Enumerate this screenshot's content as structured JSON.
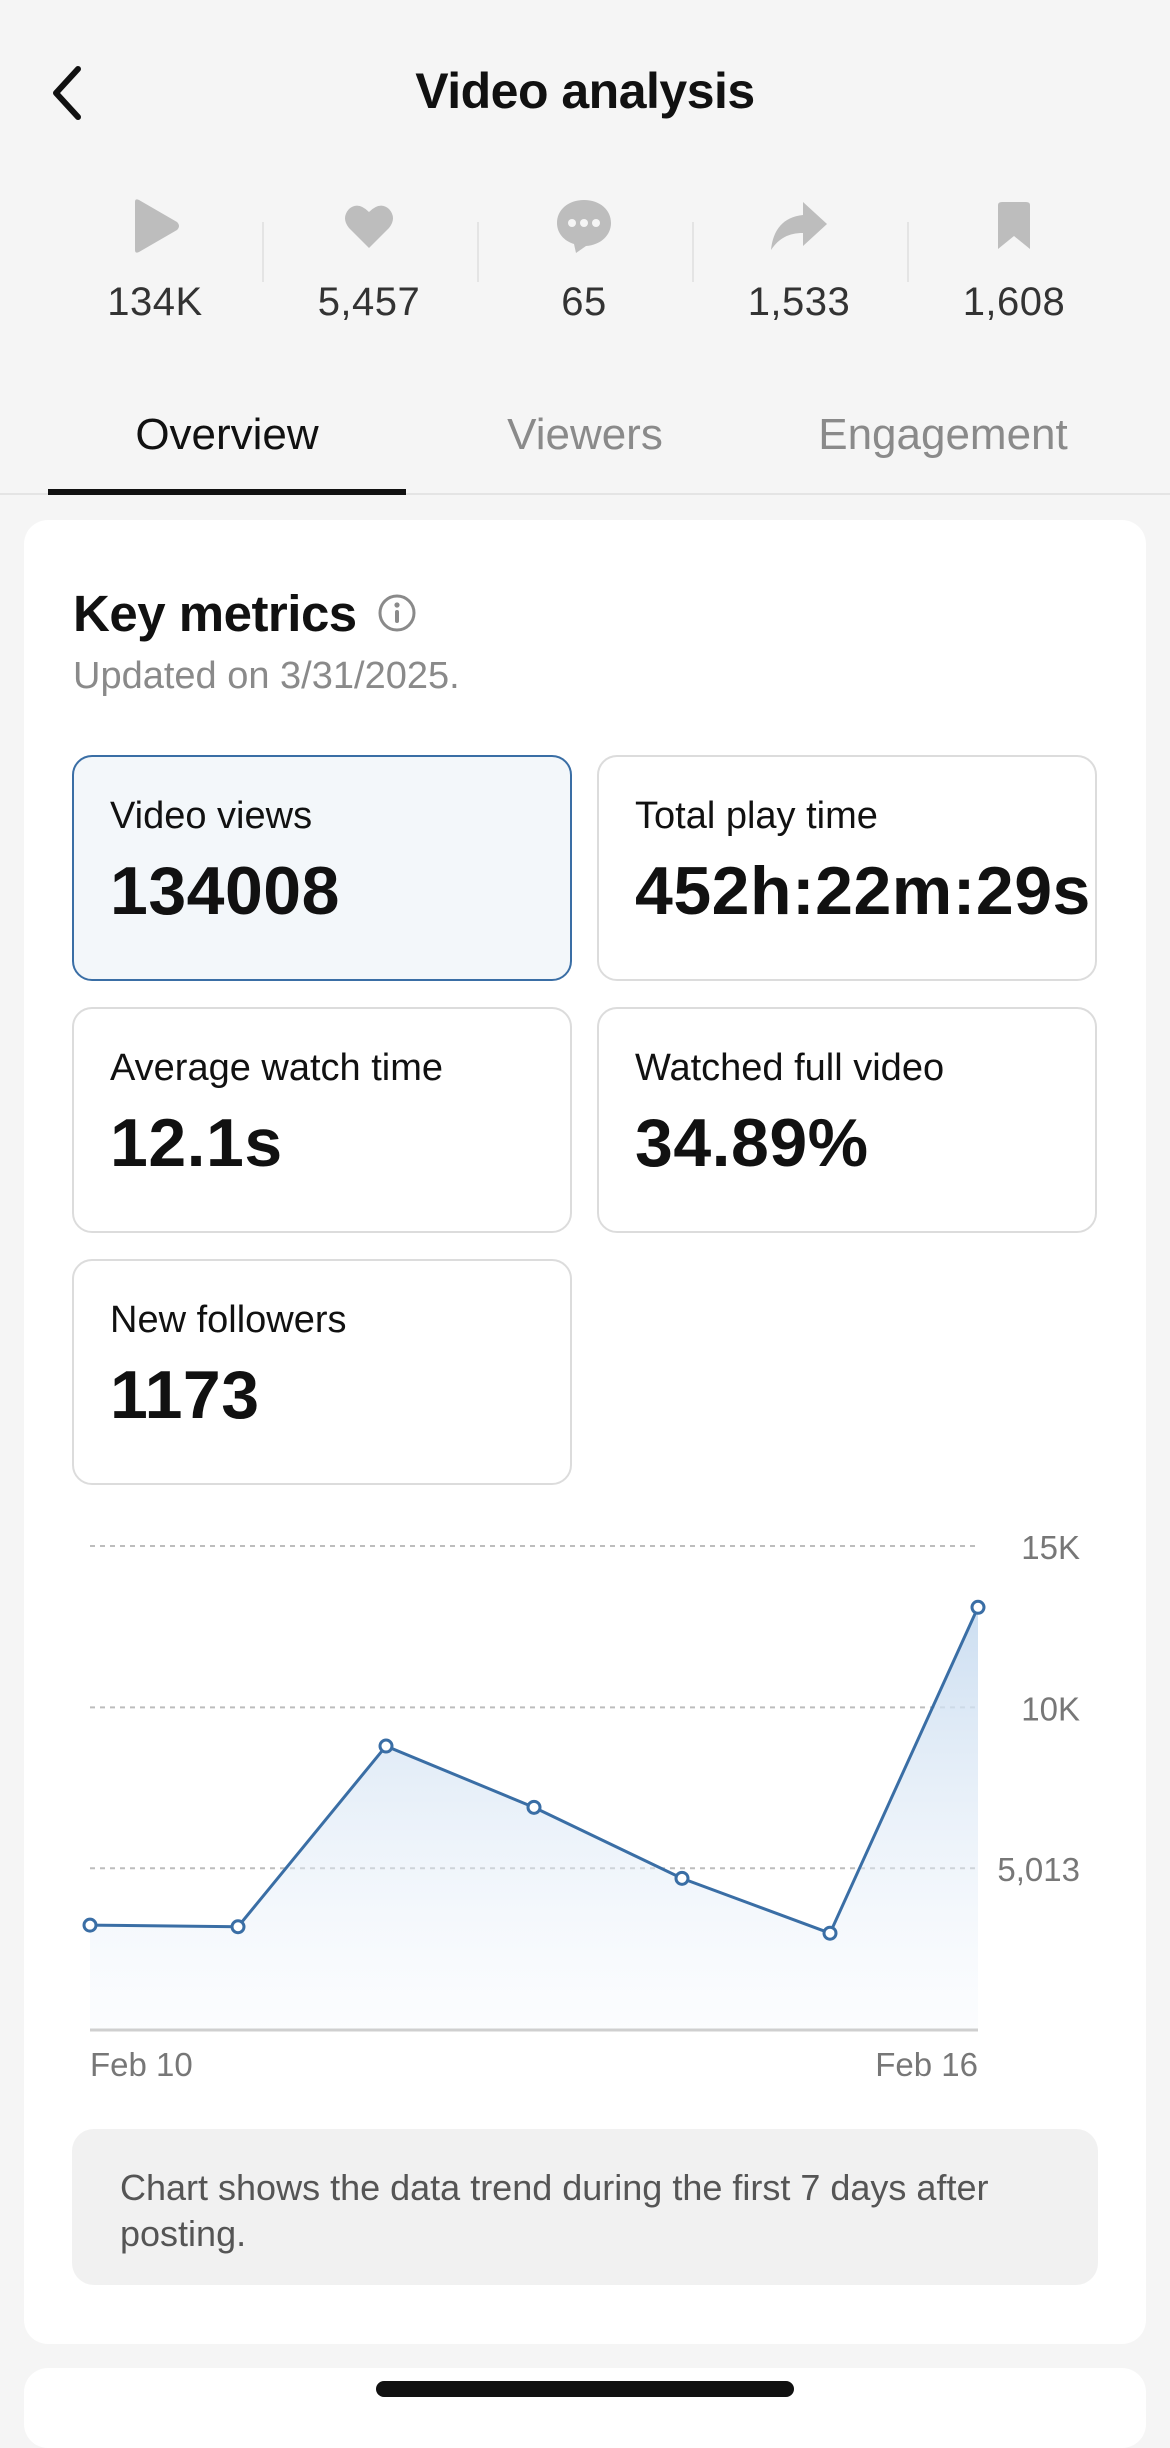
{
  "header": {
    "title": "Video analysis"
  },
  "stats": [
    {
      "icon": "play-icon",
      "value": "134K"
    },
    {
      "icon": "heart-icon",
      "value": "5,457"
    },
    {
      "icon": "comment-icon",
      "value": "65"
    },
    {
      "icon": "share-icon",
      "value": "1,533"
    },
    {
      "icon": "bookmark-icon",
      "value": "1,608"
    }
  ],
  "tabs": [
    {
      "label": "Overview",
      "active": true
    },
    {
      "label": "Viewers",
      "active": false
    },
    {
      "label": "Engagement",
      "active": false
    }
  ],
  "key_metrics": {
    "title": "Key metrics",
    "updated": "Updated on 3/31/2025.",
    "items": [
      {
        "label": "Video views",
        "value": "134008",
        "selected": true
      },
      {
        "label": "Total play time",
        "value": "452h:22m:29s",
        "selected": false
      },
      {
        "label": "Average watch time",
        "value": "12.1s",
        "selected": false
      },
      {
        "label": "Watched full video",
        "value": "34.89%",
        "selected": false
      },
      {
        "label": "New followers",
        "value": "1173",
        "selected": false
      }
    ]
  },
  "chart_data": {
    "type": "area",
    "x_tick_labels": [
      "Feb 10",
      "Feb 16"
    ],
    "y_tick_labels": [
      "15K",
      "10K",
      "5,013"
    ],
    "y_ticks": [
      15000,
      10000,
      5013
    ],
    "ylim": [
      0,
      15000
    ],
    "values": [
      3250,
      3200,
      8800,
      6900,
      4700,
      3000,
      13100
    ],
    "grid": true,
    "color": "#3a6ea5"
  },
  "note": "Chart shows the data trend during the first 7 days after posting.",
  "colors": {
    "accent": "#3a6ea5",
    "background": "#f5f5f5"
  }
}
